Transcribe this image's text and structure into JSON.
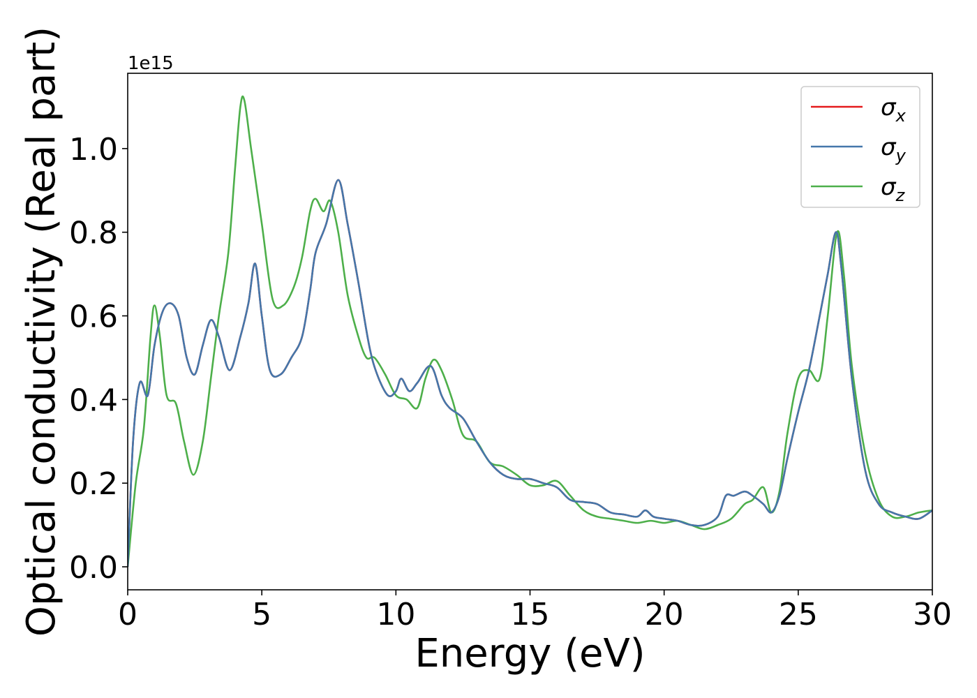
{
  "chart_data": {
    "type": "line",
    "xlabel": "Energy (eV)",
    "ylabel": "Optical conductivity (Real part)",
    "y_offset_text": "1e15",
    "xlim": [
      0,
      30
    ],
    "ylim": [
      -0.055,
      1.18
    ],
    "x_ticks": [
      0,
      5,
      10,
      15,
      20,
      25,
      30
    ],
    "x_tick_labels": [
      "0",
      "5",
      "10",
      "15",
      "20",
      "25",
      "30"
    ],
    "y_ticks": [
      0.0,
      0.2,
      0.4,
      0.6,
      0.8,
      1.0
    ],
    "y_tick_labels": [
      "0.0",
      "0.2",
      "0.4",
      "0.6",
      "0.8",
      "1.0"
    ],
    "grid": false,
    "legend_position": "top-right",
    "series": [
      {
        "name": "σx",
        "label_base": "σ",
        "label_sub": "x",
        "color": "#e41a1c",
        "x": [
          0,
          0.2,
          0.45,
          0.75,
          1.0,
          1.3,
          1.6,
          1.9,
          2.2,
          2.5,
          2.8,
          3.1,
          3.4,
          3.8,
          4.2,
          4.5,
          4.75,
          5.0,
          5.3,
          5.7,
          6.1,
          6.5,
          6.8,
          7.0,
          7.4,
          7.85,
          8.2,
          8.6,
          9.0,
          9.3,
          9.7,
          10.0,
          10.2,
          10.5,
          10.8,
          11.3,
          11.7,
          12.0,
          12.5,
          13.0,
          13.5,
          14.0,
          14.5,
          15.0,
          15.5,
          16.0,
          16.5,
          17.0,
          17.5,
          18.0,
          18.5,
          19.0,
          19.3,
          19.6,
          20.0,
          20.5,
          21.0,
          21.5,
          22.0,
          22.3,
          22.6,
          23.0,
          23.3,
          23.7,
          24.0,
          24.3,
          24.6,
          25.0,
          25.4,
          25.8,
          26.1,
          26.4,
          26.6,
          27.0,
          27.5,
          28.0,
          28.5,
          29.0,
          29.5,
          30.0
        ],
        "y": [
          0.0,
          0.3,
          0.44,
          0.41,
          0.53,
          0.61,
          0.63,
          0.6,
          0.5,
          0.46,
          0.53,
          0.59,
          0.55,
          0.47,
          0.55,
          0.63,
          0.725,
          0.6,
          0.47,
          0.46,
          0.5,
          0.55,
          0.66,
          0.75,
          0.82,
          0.925,
          0.82,
          0.68,
          0.53,
          0.46,
          0.41,
          0.42,
          0.45,
          0.42,
          0.44,
          0.48,
          0.41,
          0.38,
          0.355,
          0.3,
          0.25,
          0.22,
          0.21,
          0.21,
          0.2,
          0.19,
          0.16,
          0.155,
          0.15,
          0.13,
          0.125,
          0.12,
          0.135,
          0.12,
          0.115,
          0.11,
          0.1,
          0.1,
          0.12,
          0.17,
          0.17,
          0.18,
          0.17,
          0.15,
          0.13,
          0.17,
          0.26,
          0.37,
          0.47,
          0.6,
          0.7,
          0.8,
          0.72,
          0.45,
          0.23,
          0.15,
          0.13,
          0.12,
          0.115,
          0.135
        ]
      },
      {
        "name": "σy",
        "label_base": "σ",
        "label_sub": "y",
        "color": "#4477aa",
        "x": [
          0,
          0.2,
          0.45,
          0.75,
          1.0,
          1.3,
          1.6,
          1.9,
          2.2,
          2.5,
          2.8,
          3.1,
          3.4,
          3.8,
          4.2,
          4.5,
          4.75,
          5.0,
          5.3,
          5.7,
          6.1,
          6.5,
          6.8,
          7.0,
          7.4,
          7.85,
          8.2,
          8.6,
          9.0,
          9.3,
          9.7,
          10.0,
          10.2,
          10.5,
          10.8,
          11.3,
          11.7,
          12.0,
          12.5,
          13.0,
          13.5,
          14.0,
          14.5,
          15.0,
          15.5,
          16.0,
          16.5,
          17.0,
          17.5,
          18.0,
          18.5,
          19.0,
          19.3,
          19.6,
          20.0,
          20.5,
          21.0,
          21.5,
          22.0,
          22.3,
          22.6,
          23.0,
          23.3,
          23.7,
          24.0,
          24.3,
          24.6,
          25.0,
          25.4,
          25.8,
          26.1,
          26.4,
          26.6,
          27.0,
          27.5,
          28.0,
          28.5,
          29.0,
          29.5,
          30.0
        ],
        "y": [
          0.0,
          0.3,
          0.44,
          0.41,
          0.53,
          0.61,
          0.63,
          0.6,
          0.5,
          0.46,
          0.53,
          0.59,
          0.55,
          0.47,
          0.55,
          0.63,
          0.725,
          0.6,
          0.47,
          0.46,
          0.5,
          0.55,
          0.66,
          0.75,
          0.82,
          0.925,
          0.82,
          0.68,
          0.53,
          0.46,
          0.41,
          0.42,
          0.45,
          0.42,
          0.44,
          0.48,
          0.41,
          0.38,
          0.355,
          0.3,
          0.25,
          0.22,
          0.21,
          0.21,
          0.2,
          0.19,
          0.16,
          0.155,
          0.15,
          0.13,
          0.125,
          0.12,
          0.135,
          0.12,
          0.115,
          0.11,
          0.1,
          0.1,
          0.12,
          0.17,
          0.17,
          0.18,
          0.17,
          0.15,
          0.13,
          0.17,
          0.26,
          0.37,
          0.47,
          0.6,
          0.7,
          0.8,
          0.72,
          0.45,
          0.23,
          0.15,
          0.13,
          0.12,
          0.115,
          0.135
        ]
      },
      {
        "name": "σz",
        "label_base": "σ",
        "label_sub": "z",
        "color": "#4daf4a",
        "x": [
          0,
          0.3,
          0.6,
          0.85,
          1.0,
          1.2,
          1.45,
          1.8,
          2.1,
          2.45,
          2.8,
          3.1,
          3.4,
          3.75,
          4.0,
          4.2,
          4.35,
          4.6,
          5.0,
          5.4,
          5.8,
          6.2,
          6.5,
          6.8,
          7.0,
          7.3,
          7.55,
          7.85,
          8.2,
          8.6,
          8.9,
          9.2,
          9.6,
          10.0,
          10.4,
          10.8,
          11.1,
          11.4,
          11.7,
          12.1,
          12.5,
          13.0,
          13.5,
          14.0,
          14.5,
          15.0,
          15.5,
          16.0,
          16.5,
          17.0,
          17.5,
          18.0,
          18.5,
          19.0,
          19.5,
          20.0,
          20.5,
          21.0,
          21.5,
          22.0,
          22.5,
          23.0,
          23.3,
          23.7,
          24.0,
          24.3,
          24.6,
          25.0,
          25.4,
          25.8,
          26.1,
          26.45,
          26.7,
          27.0,
          27.5,
          28.0,
          28.5,
          29.0,
          29.5,
          30.0
        ],
        "y": [
          0.0,
          0.2,
          0.33,
          0.55,
          0.625,
          0.55,
          0.41,
          0.39,
          0.3,
          0.22,
          0.3,
          0.45,
          0.6,
          0.75,
          0.95,
          1.1,
          1.115,
          1.0,
          0.82,
          0.64,
          0.625,
          0.67,
          0.74,
          0.85,
          0.88,
          0.85,
          0.875,
          0.8,
          0.65,
          0.55,
          0.5,
          0.5,
          0.46,
          0.41,
          0.4,
          0.38,
          0.45,
          0.495,
          0.47,
          0.4,
          0.315,
          0.3,
          0.25,
          0.24,
          0.22,
          0.195,
          0.195,
          0.205,
          0.17,
          0.135,
          0.12,
          0.115,
          0.11,
          0.105,
          0.11,
          0.105,
          0.11,
          0.1,
          0.09,
          0.1,
          0.115,
          0.15,
          0.16,
          0.19,
          0.13,
          0.18,
          0.32,
          0.45,
          0.47,
          0.45,
          0.6,
          0.8,
          0.7,
          0.48,
          0.27,
          0.16,
          0.12,
          0.12,
          0.13,
          0.135
        ]
      }
    ]
  }
}
